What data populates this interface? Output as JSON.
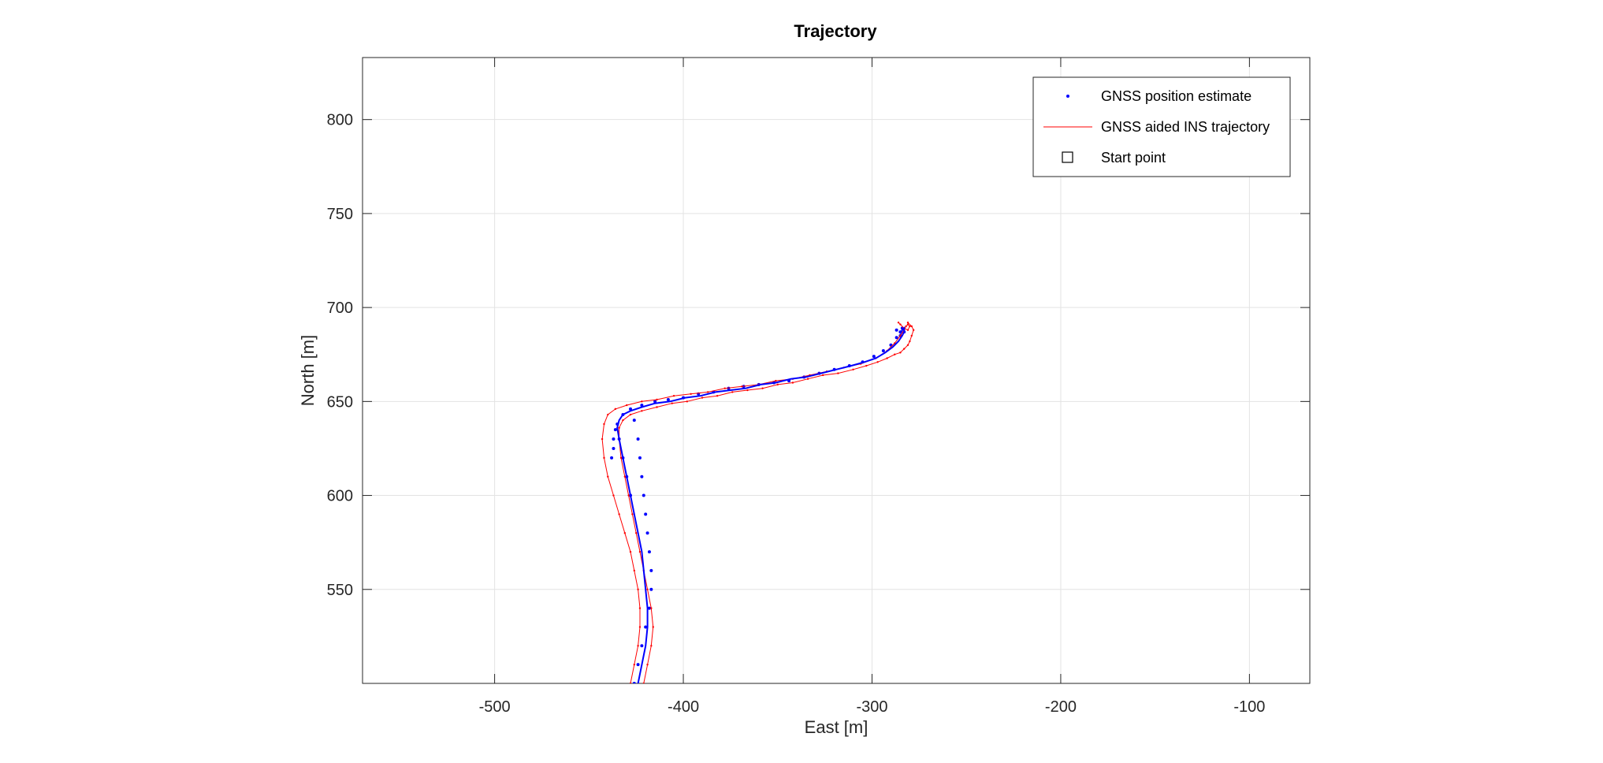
{
  "chart_data": {
    "type": "line",
    "title": "Trajectory",
    "xlabel": "East [m]",
    "ylabel": "North [m]",
    "xlim": [
      -570,
      -68
    ],
    "ylim": [
      500,
      833
    ],
    "xticks": [
      -500,
      -400,
      -300,
      -200,
      -100
    ],
    "yticks": [
      550,
      600,
      650,
      700,
      750,
      800
    ],
    "xtick_labels": [
      "-500",
      "-400",
      "-300",
      "-200",
      "-100"
    ],
    "ytick_labels": [
      "550",
      "600",
      "650",
      "700",
      "750",
      "800"
    ],
    "grid": true,
    "legend_position": "top-right",
    "legend": [
      {
        "label": "GNSS position estimate",
        "marker": "dot",
        "color": "#0000ff"
      },
      {
        "label": "GNSS aided INS trajectory",
        "marker": "line",
        "color": "#ff0000"
      },
      {
        "label": "Start point",
        "marker": "square",
        "color": "#000000"
      }
    ],
    "series": [
      {
        "name": "GNSS position estimate",
        "style": "markers",
        "color": "#0000ff",
        "x": [
          -426,
          -424,
          -422,
          -420,
          -418,
          -417,
          -417,
          -418,
          -419,
          -420,
          -421,
          -422,
          -423,
          -424,
          -426,
          -428,
          -430,
          -432,
          -434,
          -436,
          -437,
          -438,
          -437,
          -435,
          -432,
          -428,
          -422,
          -415,
          -408,
          -400,
          -392,
          -384,
          -376,
          -368,
          -360,
          -352,
          -344,
          -336,
          -328,
          -320,
          -312,
          -305,
          -299,
          -294,
          -290,
          -287,
          -285,
          -284,
          -283,
          -285,
          -287
        ],
        "y": [
          500,
          510,
          520,
          530,
          540,
          550,
          560,
          570,
          580,
          590,
          600,
          610,
          620,
          630,
          640,
          600,
          610,
          620,
          630,
          635,
          625,
          620,
          630,
          638,
          643,
          646,
          648,
          650,
          651,
          652,
          654,
          655,
          657,
          658,
          659,
          660,
          661,
          663,
          665,
          667,
          669,
          671,
          674,
          677,
          680,
          684,
          687,
          689,
          687,
          685,
          688
        ]
      },
      {
        "name": "GNSS aided INS trajectory",
        "style": "lines",
        "color": "#ff0000",
        "paths": [
          {
            "x": [
              -428,
              -426,
              -424,
              -423,
              -423,
              -424,
              -426,
              -428,
              -431,
              -434,
              -437,
              -440,
              -442,
              -443,
              -442,
              -440,
              -436,
              -430,
              -422,
              -414,
              -405,
              -396,
              -387,
              -378,
              -369,
              -360,
              -351,
              -342,
              -333,
              -324,
              -315,
              -306,
              -298,
              -292,
              -288,
              -285,
              -283,
              -282,
              -281,
              -280,
              -281,
              -283,
              -285,
              -286
            ],
            "y": [
              500,
              510,
              520,
              530,
              540,
              550,
              560,
              570,
              580,
              590,
              600,
              610,
              620,
              630,
              638,
              643,
              646,
              648,
              650,
              651,
              653,
              654,
              655,
              657,
              658,
              659,
              661,
              662,
              664,
              666,
              668,
              670,
              673,
              677,
              681,
              685,
              688,
              690,
              691,
              690,
              688,
              689,
              691,
              692
            ]
          },
          {
            "x": [
              -421,
              -419,
              -417,
              -416,
              -417,
              -419,
              -421,
              -423,
              -425,
              -427,
              -429,
              -431,
              -433,
              -434,
              -434,
              -432,
              -428,
              -422,
              -414,
              -406,
              -398,
              -390,
              -382,
              -374,
              -366,
              -358,
              -350,
              -342,
              -334,
              -326,
              -318,
              -310,
              -303,
              -297,
              -292,
              -288,
              -285,
              -283,
              -281,
              -280,
              -279,
              -278,
              -279,
              -281
            ],
            "y": [
              500,
              510,
              520,
              530,
              540,
              550,
              560,
              570,
              580,
              590,
              600,
              610,
              620,
              630,
              636,
              640,
              643,
              645,
              647,
              649,
              650,
              652,
              653,
              655,
              656,
              657,
              659,
              660,
              662,
              664,
              665,
              667,
              669,
              671,
              673,
              675,
              676,
              678,
              680,
              682,
              685,
              688,
              690,
              692
            ]
          }
        ]
      },
      {
        "name": "GNSS position estimate track",
        "style": "line",
        "color": "#0000ff",
        "x": [
          -424,
          -422,
          -420,
          -419,
          -419,
          -420,
          -421,
          -422,
          -424,
          -426,
          -428,
          -430,
          -432,
          -434,
          -435,
          -434,
          -432,
          -428,
          -422,
          -415,
          -407,
          -399,
          -391,
          -383,
          -375,
          -367,
          -359,
          -351,
          -343,
          -335,
          -327,
          -319,
          -311,
          -304,
          -298,
          -293,
          -289,
          -286,
          -284,
          -283,
          -283,
          -284,
          -285
        ],
        "y": [
          500,
          510,
          520,
          530,
          540,
          550,
          560,
          570,
          580,
          590,
          600,
          610,
          620,
          630,
          636,
          640,
          643,
          645,
          647,
          649,
          650,
          652,
          653,
          655,
          656,
          657,
          659,
          660,
          662,
          663,
          665,
          667,
          669,
          671,
          673,
          676,
          679,
          682,
          685,
          687,
          689,
          688,
          686
        ]
      }
    ]
  }
}
